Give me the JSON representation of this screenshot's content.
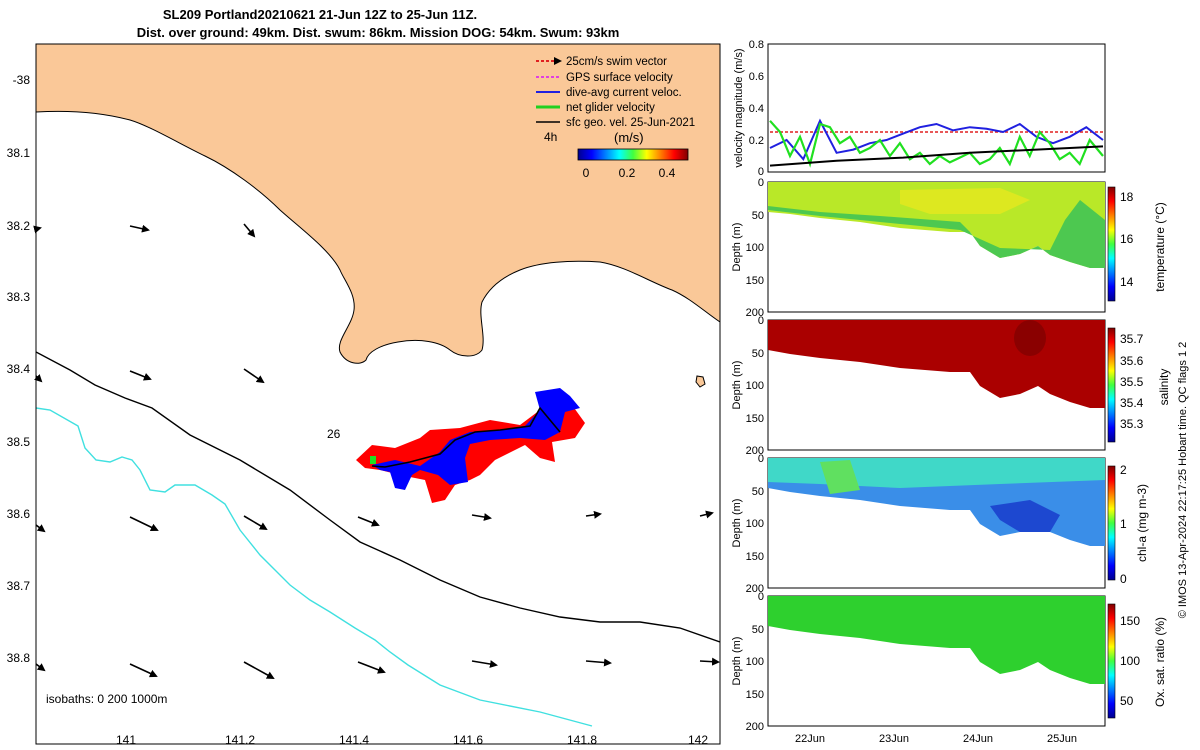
{
  "title": {
    "line1": "SL209 Portland20210621 21-Jun 12Z to 25-Jun 11Z.",
    "line2": "Dist. over ground: 49km. Dist. swum: 86km. Mission DOG: 54km. Swum: 93km"
  },
  "map": {
    "x_ticks": [
      "141",
      "141.2",
      "141.4",
      "141.6",
      "141.8",
      "142"
    ],
    "y_ticks": [
      "-38",
      "38.1",
      "38.2",
      "38.3",
      "38.4",
      "38.5",
      "38.6",
      "38.7",
      "38.8"
    ],
    "annotation_26": "26",
    "isobaths": "isobaths: 0   200  1000m",
    "colorbar_label": "(m/s)",
    "colorbar_ticks": [
      "0",
      "0.2",
      "0.4"
    ],
    "colorbar_time": "4h",
    "legend": [
      {
        "label": "25cm/s swim vector",
        "color": "#e02020"
      },
      {
        "label": "GPS surface velocity",
        "color": "#e040e0"
      },
      {
        "label": "dive-avg current veloc.",
        "color": "#2020e0"
      },
      {
        "label": "net glider velocity",
        "color": "#20d020"
      },
      {
        "label": "sfc geo. vel. 25-Jun-2021",
        "color": "#000000"
      }
    ],
    "colors": {
      "land": "#fac898",
      "track_red": "#ff0000",
      "track_blue": "#0000ff",
      "isobath_200": "#000000",
      "isobath_1000": "#40e0e0"
    }
  },
  "chart_data": [
    {
      "type": "line",
      "title": "",
      "ylabel": "velocity magnitude (m/s)",
      "ylim": [
        0,
        0.8
      ],
      "y_ticks": [
        "0",
        "0.2",
        "0.4",
        "0.6",
        "0.8"
      ],
      "series": [
        {
          "name": "swim vector",
          "color": "#e02020",
          "x": [
            0,
            1
          ],
          "values": [
            0.25,
            0.25
          ]
        },
        {
          "name": "dive-avg current",
          "color": "#2020e0",
          "x": [
            0,
            0.05,
            0.1,
            0.15,
            0.2,
            0.25,
            0.3,
            0.35,
            0.4,
            0.45,
            0.5,
            0.55,
            0.6,
            0.65,
            0.7,
            0.75,
            0.8,
            0.85,
            0.9,
            0.95,
            1
          ],
          "values": [
            0.15,
            0.2,
            0.08,
            0.32,
            0.12,
            0.14,
            0.18,
            0.2,
            0.24,
            0.28,
            0.3,
            0.26,
            0.28,
            0.27,
            0.25,
            0.3,
            0.22,
            0.18,
            0.22,
            0.28,
            0.2
          ]
        },
        {
          "name": "net glider velocity",
          "color": "#20e020",
          "x": [
            0,
            0.03,
            0.06,
            0.09,
            0.12,
            0.15,
            0.18,
            0.21,
            0.24,
            0.27,
            0.3,
            0.33,
            0.36,
            0.39,
            0.42,
            0.45,
            0.48,
            0.51,
            0.54,
            0.57,
            0.6,
            0.63,
            0.66,
            0.69,
            0.72,
            0.75,
            0.78,
            0.81,
            0.84,
            0.87,
            0.9,
            0.93,
            0.96,
            1
          ],
          "values": [
            0.32,
            0.25,
            0.1,
            0.22,
            0.05,
            0.3,
            0.28,
            0.18,
            0.22,
            0.12,
            0.15,
            0.2,
            0.1,
            0.18,
            0.08,
            0.12,
            0.05,
            0.1,
            0.06,
            0.09,
            0.12,
            0.05,
            0.08,
            0.15,
            0.05,
            0.22,
            0.1,
            0.25,
            0.18,
            0.08,
            0.12,
            0.05,
            0.2,
            0.1
          ]
        },
        {
          "name": "sfc geo vel",
          "color": "#000000",
          "x": [
            0,
            0.2,
            0.4,
            0.6,
            0.8,
            1
          ],
          "values": [
            0.04,
            0.07,
            0.09,
            0.12,
            0.14,
            0.16
          ]
        }
      ]
    },
    {
      "type": "heatmap",
      "ylabel": "Depth (m)",
      "ylim": [
        200,
        0
      ],
      "y_ticks": [
        "0",
        "50",
        "100",
        "150",
        "200"
      ],
      "colorbar_label": "temperature (°C)",
      "colorbar_ticks": [
        "18",
        "16",
        "14"
      ],
      "range": [
        13,
        18.5
      ]
    },
    {
      "type": "heatmap",
      "ylabel": "Depth (m)",
      "ylim": [
        200,
        0
      ],
      "y_ticks": [
        "0",
        "50",
        "100",
        "150",
        "200"
      ],
      "colorbar_label": "salinity",
      "colorbar_ticks": [
        "35.7",
        "35.6",
        "35.5",
        "35.4",
        "35.3"
      ],
      "range": [
        35.25,
        35.75
      ]
    },
    {
      "type": "heatmap",
      "ylabel": "Depth (m)",
      "ylim": [
        200,
        0
      ],
      "y_ticks": [
        "0",
        "50",
        "100",
        "150",
        "200"
      ],
      "colorbar_label": "chl-a (mg m-3)",
      "colorbar_ticks": [
        "2",
        "1",
        "0"
      ],
      "range": [
        0,
        2
      ]
    },
    {
      "type": "heatmap",
      "ylabel": "Depth (m)",
      "ylim": [
        200,
        0
      ],
      "y_ticks": [
        "0",
        "50",
        "100",
        "150",
        "200"
      ],
      "colorbar_label": "Ox. sat. ratio (%)",
      "colorbar_ticks": [
        "150",
        "100",
        "50"
      ],
      "range": [
        20,
        175
      ]
    }
  ],
  "time_axis": {
    "ticks": [
      "22Jun",
      "23Jun",
      "24Jun",
      "25Jun"
    ]
  },
  "footer": {
    "credit": "© IMOS 13-Apr-2024 22:17:25 Hobart time. QC flags 1  2"
  }
}
